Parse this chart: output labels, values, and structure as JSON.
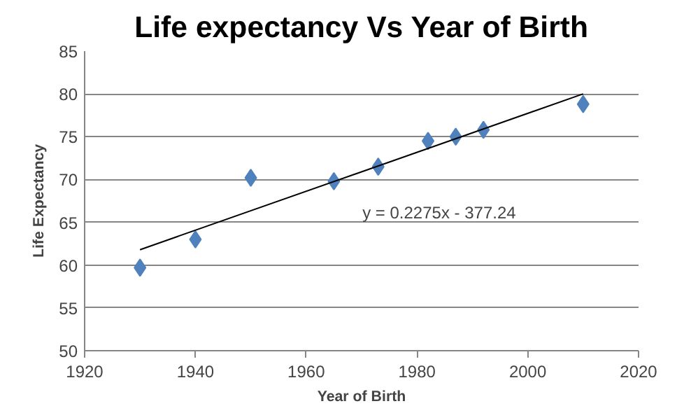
{
  "chart_data": {
    "type": "scatter",
    "title": "Life expectancy Vs Year of Birth",
    "xlabel": "Year of Birth",
    "ylabel": "Life Expectancy",
    "series": [
      {
        "color": "#4f81bd",
        "marker": "diamond",
        "x": [
          1930,
          1940,
          1950,
          1965,
          1973,
          1982,
          1987,
          1992,
          2010
        ],
        "values": [
          59.7,
          63.0,
          70.2,
          69.8,
          71.5,
          74.5,
          75.0,
          75.8,
          78.8
        ]
      },
      {
        "type": "line",
        "color": "#000000",
        "marker": "none",
        "line_style": "solid",
        "x": [
          1930,
          2010
        ],
        "values": [
          61.8,
          80.0
        ]
      }
    ],
    "annotations": [
      "y = 0.2275x - 377.24"
    ],
    "xlim": [
      1920,
      2020
    ],
    "xticks": [
      1920,
      1940,
      1960,
      1980,
      2000,
      2020
    ],
    "ylim": [
      50,
      85
    ],
    "yticks": [
      50,
      55,
      60,
      65,
      70,
      75,
      80,
      85
    ],
    "grid": "y"
  }
}
